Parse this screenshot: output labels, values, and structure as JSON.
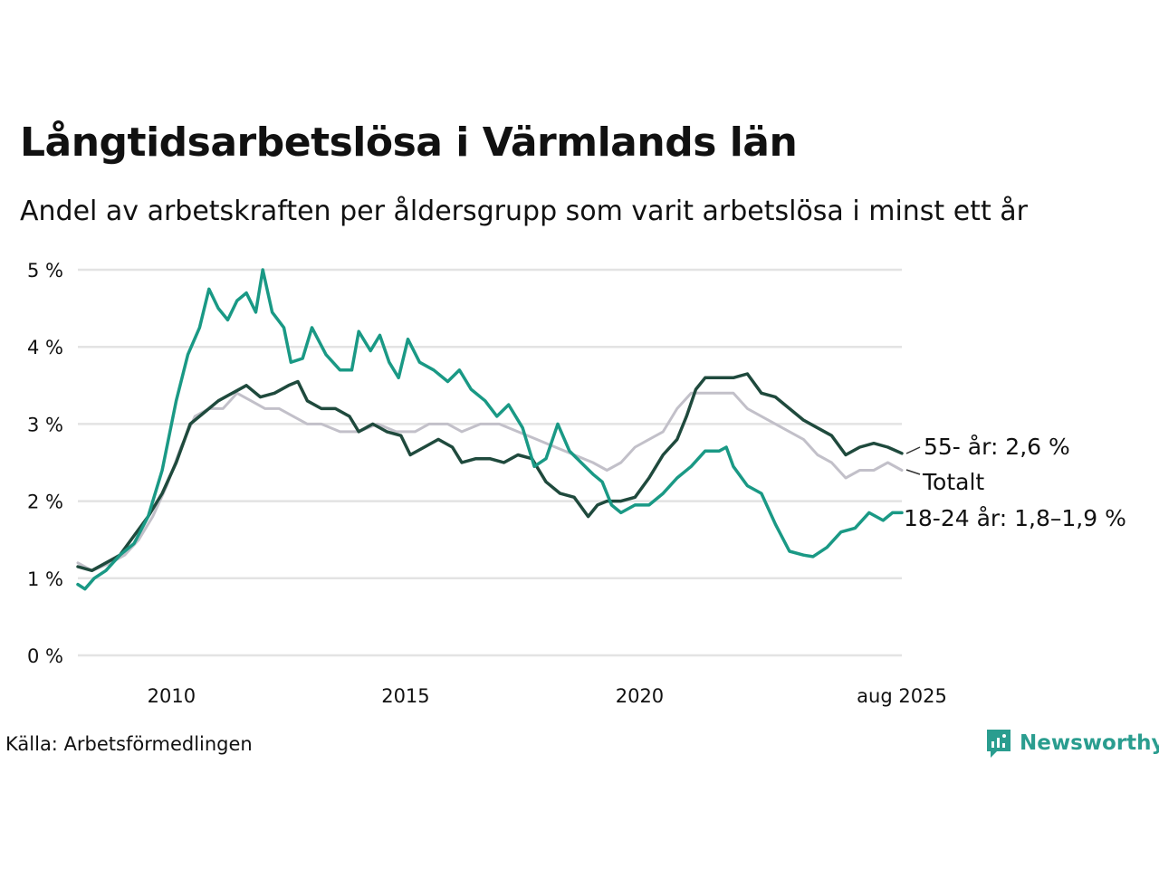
{
  "title": "Långtidsarbetslösa i Värmlands län",
  "subtitle": "Andel av arbetskraften per åldersgrupp som varit arbetslösa i minst ett år",
  "source": "Källa: Arbetsförmedlingen",
  "brand": "Newsworthy",
  "colors": {
    "young": "#1a9985",
    "old": "#1f4a3d",
    "total": "#c2c0c9",
    "grid": "#e3e3e3",
    "brand": "#2a9d8f"
  },
  "chart_data": {
    "type": "line",
    "ylim": [
      0,
      5
    ],
    "xlim": [
      2008.0,
      2025.6
    ],
    "yticks": [
      {
        "value": 0,
        "label": "0 %"
      },
      {
        "value": 1,
        "label": "1 %"
      },
      {
        "value": 2,
        "label": "2 %"
      },
      {
        "value": 3,
        "label": "3 %"
      },
      {
        "value": 4,
        "label": "4 %"
      },
      {
        "value": 5,
        "label": "5 %"
      }
    ],
    "xticks": [
      {
        "value": 2010,
        "label": "2010"
      },
      {
        "value": 2015,
        "label": "2015"
      },
      {
        "value": 2020,
        "label": "2020"
      },
      {
        "value": 2025.6,
        "label": "aug 2025"
      }
    ],
    "grid": true,
    "series": [
      {
        "key": "total",
        "name": "Totalt",
        "label": "Totalt",
        "color": "#c2c0c9",
        "points": [
          [
            2008.0,
            1.2
          ],
          [
            2008.3,
            1.1
          ],
          [
            2008.7,
            1.2
          ],
          [
            2009.0,
            1.3
          ],
          [
            2009.3,
            1.5
          ],
          [
            2009.6,
            1.8
          ],
          [
            2009.9,
            2.2
          ],
          [
            2010.2,
            2.7
          ],
          [
            2010.5,
            3.1
          ],
          [
            2010.8,
            3.2
          ],
          [
            2011.1,
            3.2
          ],
          [
            2011.4,
            3.4
          ],
          [
            2011.7,
            3.3
          ],
          [
            2012.0,
            3.2
          ],
          [
            2012.3,
            3.2
          ],
          [
            2012.6,
            3.1
          ],
          [
            2012.9,
            3.0
          ],
          [
            2013.2,
            3.0
          ],
          [
            2013.6,
            2.9
          ],
          [
            2014.0,
            2.9
          ],
          [
            2014.4,
            3.0
          ],
          [
            2014.8,
            2.9
          ],
          [
            2015.2,
            2.9
          ],
          [
            2015.5,
            3.0
          ],
          [
            2015.9,
            3.0
          ],
          [
            2016.2,
            2.9
          ],
          [
            2016.6,
            3.0
          ],
          [
            2017.0,
            3.0
          ],
          [
            2017.4,
            2.9
          ],
          [
            2017.8,
            2.8
          ],
          [
            2018.2,
            2.7
          ],
          [
            2018.6,
            2.6
          ],
          [
            2019.0,
            2.5
          ],
          [
            2019.3,
            2.4
          ],
          [
            2019.6,
            2.5
          ],
          [
            2019.9,
            2.7
          ],
          [
            2020.2,
            2.8
          ],
          [
            2020.5,
            2.9
          ],
          [
            2020.8,
            3.2
          ],
          [
            2021.1,
            3.4
          ],
          [
            2021.4,
            3.4
          ],
          [
            2021.7,
            3.4
          ],
          [
            2022.0,
            3.4
          ],
          [
            2022.3,
            3.2
          ],
          [
            2022.6,
            3.1
          ],
          [
            2022.9,
            3.0
          ],
          [
            2023.2,
            2.9
          ],
          [
            2023.5,
            2.8
          ],
          [
            2023.8,
            2.6
          ],
          [
            2024.1,
            2.5
          ],
          [
            2024.4,
            2.3
          ],
          [
            2024.7,
            2.4
          ],
          [
            2025.0,
            2.4
          ],
          [
            2025.3,
            2.5
          ],
          [
            2025.6,
            2.4
          ]
        ]
      },
      {
        "key": "old",
        "name": "55-",
        "label": "55- år: 2,6 %",
        "color": "#1f4a3d",
        "points": [
          [
            2008.0,
            1.15
          ],
          [
            2008.3,
            1.1
          ],
          [
            2008.6,
            1.2
          ],
          [
            2008.9,
            1.3
          ],
          [
            2009.2,
            1.55
          ],
          [
            2009.5,
            1.8
          ],
          [
            2009.8,
            2.1
          ],
          [
            2010.1,
            2.5
          ],
          [
            2010.4,
            3.0
          ],
          [
            2010.7,
            3.15
          ],
          [
            2011.0,
            3.3
          ],
          [
            2011.3,
            3.4
          ],
          [
            2011.6,
            3.5
          ],
          [
            2011.9,
            3.35
          ],
          [
            2012.2,
            3.4
          ],
          [
            2012.5,
            3.5
          ],
          [
            2012.7,
            3.55
          ],
          [
            2012.9,
            3.3
          ],
          [
            2013.2,
            3.2
          ],
          [
            2013.5,
            3.2
          ],
          [
            2013.8,
            3.1
          ],
          [
            2014.0,
            2.9
          ],
          [
            2014.3,
            3.0
          ],
          [
            2014.6,
            2.9
          ],
          [
            2014.9,
            2.85
          ],
          [
            2015.1,
            2.6
          ],
          [
            2015.4,
            2.7
          ],
          [
            2015.7,
            2.8
          ],
          [
            2016.0,
            2.7
          ],
          [
            2016.2,
            2.5
          ],
          [
            2016.5,
            2.55
          ],
          [
            2016.8,
            2.55
          ],
          [
            2017.1,
            2.5
          ],
          [
            2017.4,
            2.6
          ],
          [
            2017.7,
            2.55
          ],
          [
            2018.0,
            2.25
          ],
          [
            2018.3,
            2.1
          ],
          [
            2018.6,
            2.05
          ],
          [
            2018.9,
            1.8
          ],
          [
            2019.1,
            1.95
          ],
          [
            2019.3,
            2.0
          ],
          [
            2019.6,
            2.0
          ],
          [
            2019.9,
            2.05
          ],
          [
            2020.2,
            2.3
          ],
          [
            2020.5,
            2.6
          ],
          [
            2020.8,
            2.8
          ],
          [
            2021.0,
            3.1
          ],
          [
            2021.2,
            3.45
          ],
          [
            2021.4,
            3.6
          ],
          [
            2021.7,
            3.6
          ],
          [
            2022.0,
            3.6
          ],
          [
            2022.3,
            3.65
          ],
          [
            2022.6,
            3.4
          ],
          [
            2022.9,
            3.35
          ],
          [
            2023.2,
            3.2
          ],
          [
            2023.5,
            3.05
          ],
          [
            2023.8,
            2.95
          ],
          [
            2024.1,
            2.85
          ],
          [
            2024.4,
            2.6
          ],
          [
            2024.7,
            2.7
          ],
          [
            2025.0,
            2.75
          ],
          [
            2025.3,
            2.7
          ],
          [
            2025.6,
            2.62
          ]
        ]
      },
      {
        "key": "young",
        "name": "18-24",
        "label": "18-24 år: 1,8–1,9 %",
        "color": "#1a9985",
        "points": [
          [
            2008.0,
            0.92
          ],
          [
            2008.15,
            0.86
          ],
          [
            2008.35,
            1.0
          ],
          [
            2008.6,
            1.1
          ],
          [
            2008.9,
            1.3
          ],
          [
            2009.2,
            1.45
          ],
          [
            2009.5,
            1.8
          ],
          [
            2009.8,
            2.4
          ],
          [
            2010.1,
            3.3
          ],
          [
            2010.35,
            3.9
          ],
          [
            2010.6,
            4.25
          ],
          [
            2010.8,
            4.75
          ],
          [
            2011.0,
            4.5
          ],
          [
            2011.2,
            4.35
          ],
          [
            2011.4,
            4.6
          ],
          [
            2011.6,
            4.7
          ],
          [
            2011.8,
            4.45
          ],
          [
            2011.95,
            5.0
          ],
          [
            2012.15,
            4.45
          ],
          [
            2012.4,
            4.25
          ],
          [
            2012.55,
            3.8
          ],
          [
            2012.8,
            3.85
          ],
          [
            2013.0,
            4.25
          ],
          [
            2013.3,
            3.9
          ],
          [
            2013.6,
            3.7
          ],
          [
            2013.85,
            3.7
          ],
          [
            2014.0,
            4.2
          ],
          [
            2014.25,
            3.95
          ],
          [
            2014.45,
            4.15
          ],
          [
            2014.65,
            3.8
          ],
          [
            2014.85,
            3.6
          ],
          [
            2015.05,
            4.1
          ],
          [
            2015.3,
            3.8
          ],
          [
            2015.6,
            3.7
          ],
          [
            2015.9,
            3.55
          ],
          [
            2016.15,
            3.7
          ],
          [
            2016.4,
            3.45
          ],
          [
            2016.7,
            3.3
          ],
          [
            2016.95,
            3.1
          ],
          [
            2017.2,
            3.25
          ],
          [
            2017.5,
            2.95
          ],
          [
            2017.75,
            2.45
          ],
          [
            2018.0,
            2.55
          ],
          [
            2018.25,
            3.0
          ],
          [
            2018.5,
            2.65
          ],
          [
            2018.75,
            2.5
          ],
          [
            2019.0,
            2.35
          ],
          [
            2019.2,
            2.25
          ],
          [
            2019.4,
            1.95
          ],
          [
            2019.6,
            1.85
          ],
          [
            2019.9,
            1.95
          ],
          [
            2020.2,
            1.95
          ],
          [
            2020.5,
            2.1
          ],
          [
            2020.8,
            2.3
          ],
          [
            2021.1,
            2.45
          ],
          [
            2021.4,
            2.65
          ],
          [
            2021.7,
            2.65
          ],
          [
            2021.85,
            2.7
          ],
          [
            2022.0,
            2.45
          ],
          [
            2022.3,
            2.2
          ],
          [
            2022.6,
            2.1
          ],
          [
            2022.9,
            1.7
          ],
          [
            2023.2,
            1.35
          ],
          [
            2023.5,
            1.3
          ],
          [
            2023.7,
            1.28
          ],
          [
            2024.0,
            1.4
          ],
          [
            2024.3,
            1.6
          ],
          [
            2024.6,
            1.65
          ],
          [
            2024.9,
            1.85
          ],
          [
            2025.2,
            1.75
          ],
          [
            2025.4,
            1.85
          ],
          [
            2025.6,
            1.85
          ]
        ]
      }
    ]
  }
}
